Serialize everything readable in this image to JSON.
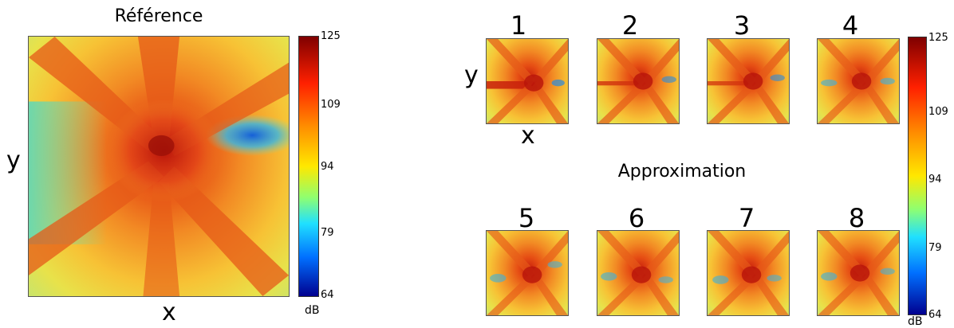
{
  "reference": {
    "title": "Référence",
    "xlabel": "x",
    "ylabel": "y",
    "colorbar": {
      "unit": "dB",
      "ticks": [
        "125",
        "109",
        "94",
        "79",
        "64"
      ]
    }
  },
  "approximation": {
    "title": "Approximation",
    "panel_numbers": [
      "1",
      "2",
      "3",
      "4",
      "5",
      "6",
      "7",
      "8"
    ],
    "xlabel": "x",
    "ylabel": "y",
    "colorbar": {
      "unit": "dB",
      "ticks": [
        "125",
        "109",
        "94",
        "79",
        "64"
      ]
    }
  },
  "chart_data": [
    {
      "type": "heatmap",
      "title": "Référence",
      "xlabel": "x",
      "ylabel": "y",
      "colorbar_label": "dB",
      "colorbar_range": [
        64,
        125
      ],
      "colorbar_ticks": [
        125,
        109,
        94,
        79,
        64
      ],
      "colormap": "jet",
      "description_values": {
        "peak_region_level_db": 120,
        "background_level_db": 100,
        "low_region_level_db": 80
      }
    },
    {
      "type": "heatmap",
      "title": "Approximation",
      "panels": [
        "1",
        "2",
        "3",
        "4",
        "5",
        "6",
        "7",
        "8"
      ],
      "xlabel": "x",
      "ylabel": "y",
      "colorbar_label": "dB",
      "colorbar_range": [
        64,
        125
      ],
      "colorbar_ticks": [
        125,
        109,
        94,
        79,
        64
      ],
      "colormap": "jet"
    }
  ]
}
